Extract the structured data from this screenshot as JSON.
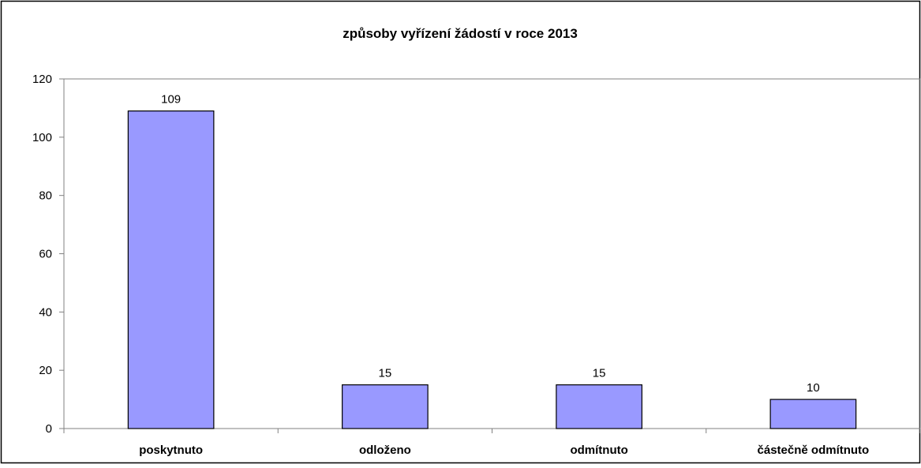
{
  "chart_data": {
    "type": "bar",
    "title": "způsoby vyřízení žádostí v roce 2013",
    "xlabel": "",
    "ylabel": "",
    "categories": [
      "poskytnuto",
      "odloženo",
      "odmítnuto",
      "částečně odmítnuto"
    ],
    "values": [
      109,
      15,
      15,
      10
    ],
    "data_labels": [
      "109",
      "15",
      "15",
      "10"
    ],
    "ylim": [
      0,
      120
    ],
    "yticks": [
      "0",
      "20",
      "40",
      "60",
      "80",
      "100",
      "120"
    ],
    "grid": false,
    "legend": "none",
    "colors": {
      "bar_fill": "#9999FF",
      "bar_stroke": "#000000",
      "axis": "#808080",
      "border": "#000000"
    }
  }
}
